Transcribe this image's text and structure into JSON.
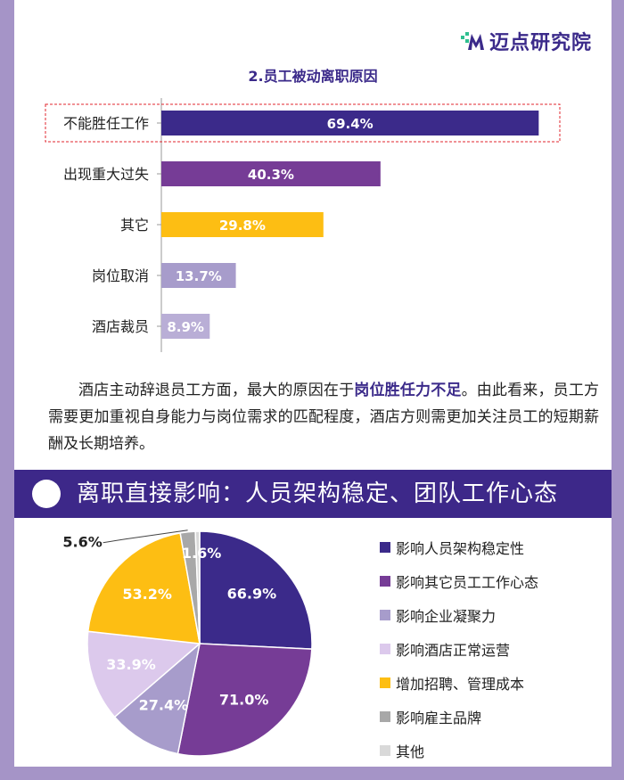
{
  "logo": {
    "text": "迈点研究院"
  },
  "bar_chart": {
    "type": "bar",
    "title": "2.员工被动离职原因",
    "categories": [
      "不能胜任工作",
      "出现重大过失",
      "其它",
      "岗位取消",
      "酒店裁员"
    ],
    "values": [
      69.4,
      40.3,
      29.8,
      13.7,
      8.9
    ],
    "value_labels": [
      "69.4%",
      "40.3%",
      "29.8%",
      "13.7%",
      "8.9%"
    ],
    "colors": [
      "#3b2a8a",
      "#763c96",
      "#fdbe13",
      "#a79ccb",
      "#b9aed6"
    ],
    "highlight_index": 0,
    "xlim": [
      0,
      100
    ]
  },
  "paragraph": {
    "before": "酒店主动辞退员工方面，最大的原因在于",
    "bold": "岗位胜任力不足",
    "after": "。由此看来，员工方需要更加重视自身能力与岗位需求的匹配程度，酒店方则需更加关注员工的短期薪酬及长期培养。"
  },
  "banner": {
    "title": "离职直接影响：人员架构稳定、团队工作心态"
  },
  "chart_data": {
    "type": "pie",
    "categories": [
      "影响人员架构稳定性",
      "影响其它员工工作心态",
      "影响企业凝聚力",
      "影响酒店正常运营",
      "增加招聘、管理成本",
      "影响雇主品牌",
      "其他"
    ],
    "values": [
      66.9,
      71.0,
      27.4,
      33.9,
      53.2,
      5.6,
      1.6
    ],
    "value_labels": [
      "66.9%",
      "71.0%",
      "27.4%",
      "33.9%",
      "53.2%",
      "5.6%",
      "1.6%"
    ],
    "colors": [
      "#3b2a8a",
      "#763c96",
      "#a79ccb",
      "#dcc9ec",
      "#fdbe13",
      "#a8a8a8",
      "#d9d9d9"
    ],
    "legend_position": "right"
  }
}
